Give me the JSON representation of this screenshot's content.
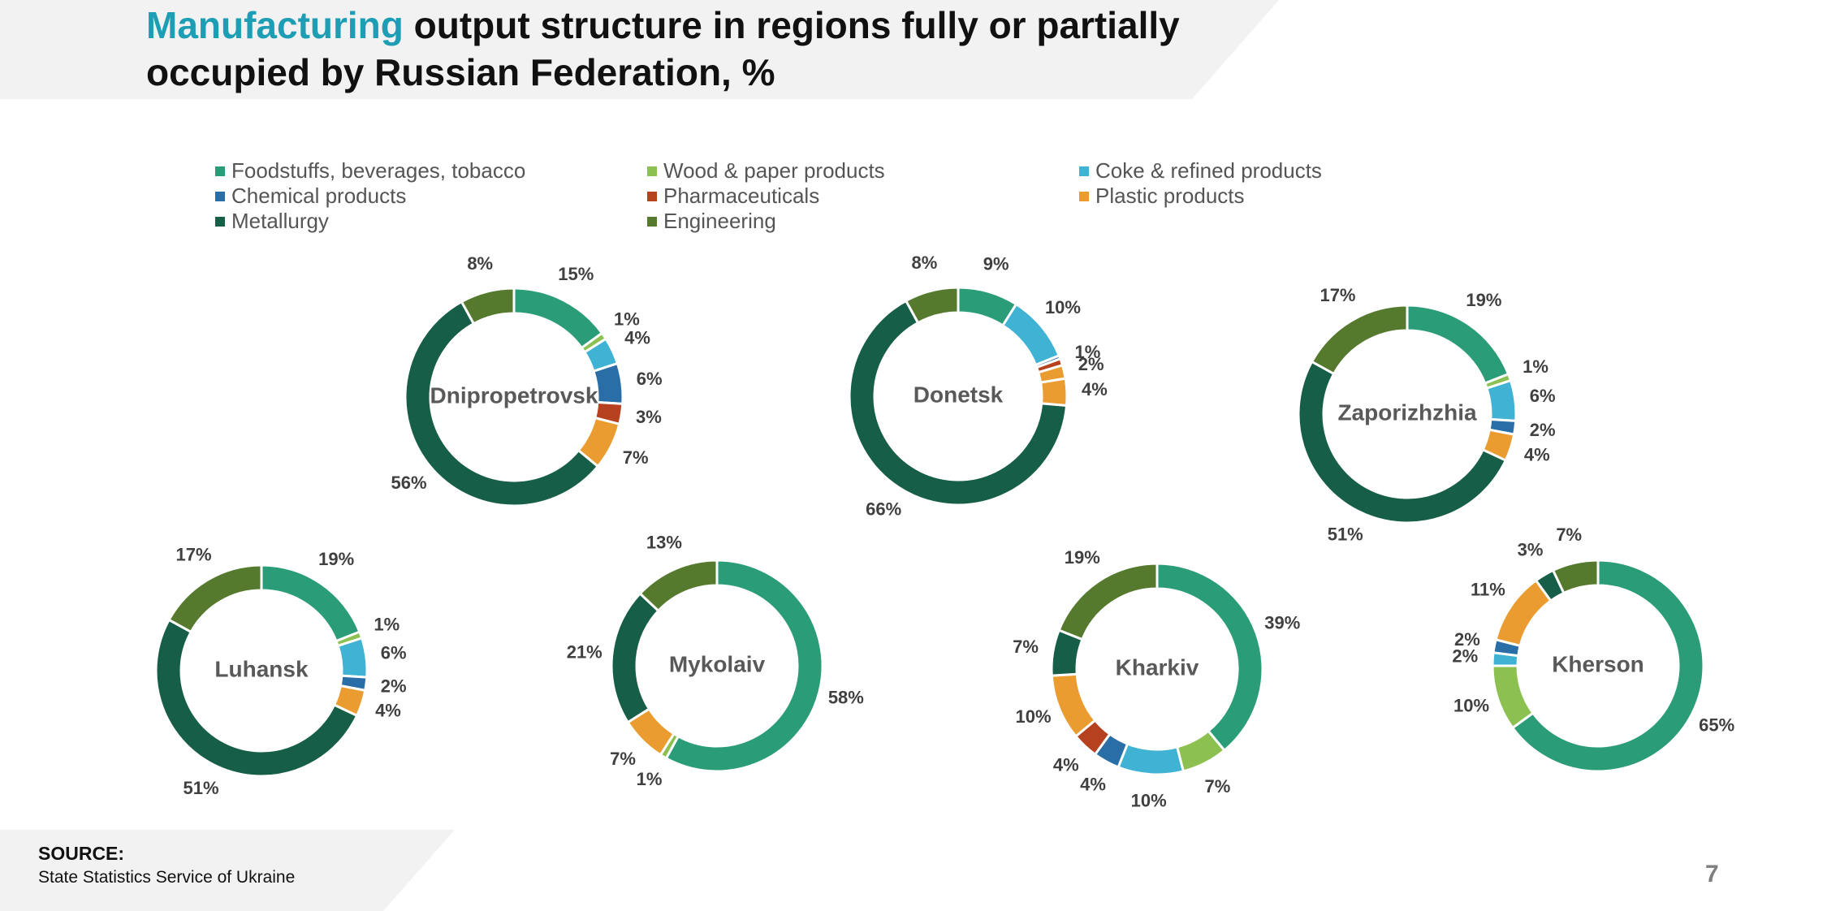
{
  "title": {
    "accent": "Manufacturing",
    "rest_line1": " output structure in regions fully or partially",
    "line2": "occupied by Russian Federation, %"
  },
  "colors": {
    "foodstuffs": "#2a9d78",
    "wood": "#8cc152",
    "coke": "#40b3d4",
    "chemical": "#2a6ea8",
    "pharma": "#b5411f",
    "plastic": "#eb9c30",
    "metallurgy": "#175e48",
    "engineering": "#557a2e"
  },
  "legend": [
    {
      "key": "foodstuffs",
      "label": "Foodstuffs, beverages, tobacco"
    },
    {
      "key": "wood",
      "label": "Wood & paper products"
    },
    {
      "key": "coke",
      "label": "Coke & refined products"
    },
    {
      "key": "chemical",
      "label": "Chemical products"
    },
    {
      "key": "pharma",
      "label": "Pharmaceuticals"
    },
    {
      "key": "plastic",
      "label": "Plastic products"
    },
    {
      "key": "metallurgy",
      "label": "Metallurgy"
    },
    {
      "key": "engineering",
      "label": "Engineering"
    }
  ],
  "chart_data": [
    {
      "type": "pie",
      "region": "Dnipropetrovsk",
      "slices": [
        {
          "category": "foodstuffs",
          "value": 15,
          "label": "15%"
        },
        {
          "category": "wood",
          "value": 1,
          "label": "1%"
        },
        {
          "category": "coke",
          "value": 4,
          "label": "4%"
        },
        {
          "category": "chemical",
          "value": 6,
          "label": "6%"
        },
        {
          "category": "pharma",
          "value": 3,
          "label": "3%"
        },
        {
          "category": "plastic",
          "value": 7,
          "label": "7%"
        },
        {
          "category": "metallurgy",
          "value": 56,
          "label": "56%"
        },
        {
          "category": "engineering",
          "value": 8,
          "label": "8%"
        }
      ]
    },
    {
      "type": "pie",
      "region": "Donetsk",
      "slices": [
        {
          "category": "foodstuffs",
          "value": 9,
          "label": "9%"
        },
        {
          "category": "coke",
          "value": 10,
          "label": "10%"
        },
        {
          "category": "chemical",
          "value": 0.5,
          "label": ""
        },
        {
          "category": "pharma",
          "value": 1,
          "label": "1%"
        },
        {
          "category": "plastic",
          "value": 2,
          "label": "2%"
        },
        {
          "category": "plastic",
          "value": 4,
          "label": "4%"
        },
        {
          "category": "metallurgy",
          "value": 66,
          "label": "66%"
        },
        {
          "category": "engineering",
          "value": 8,
          "label": "8%"
        }
      ]
    },
    {
      "type": "pie",
      "region": "Zaporizhzhia",
      "slices": [
        {
          "category": "foodstuffs",
          "value": 19,
          "label": "19%"
        },
        {
          "category": "wood",
          "value": 1,
          "label": "1%"
        },
        {
          "category": "coke",
          "value": 6,
          "label": "6%"
        },
        {
          "category": "chemical",
          "value": 2,
          "label": "2%"
        },
        {
          "category": "plastic",
          "value": 4,
          "label": "4%"
        },
        {
          "category": "metallurgy",
          "value": 51,
          "label": "51%"
        },
        {
          "category": "engineering",
          "value": 17,
          "label": "17%"
        }
      ]
    },
    {
      "type": "pie",
      "region": "Luhansk",
      "slices": [
        {
          "category": "foodstuffs",
          "value": 19,
          "label": "19%"
        },
        {
          "category": "wood",
          "value": 1,
          "label": "1%"
        },
        {
          "category": "coke",
          "value": 6,
          "label": "6%"
        },
        {
          "category": "chemical",
          "value": 2,
          "label": "2%"
        },
        {
          "category": "plastic",
          "value": 4,
          "label": "4%"
        },
        {
          "category": "metallurgy",
          "value": 51,
          "label": "51%"
        },
        {
          "category": "engineering",
          "value": 17,
          "label": "17%"
        }
      ]
    },
    {
      "type": "pie",
      "region": "Mykolaiv",
      "slices": [
        {
          "category": "foodstuffs",
          "value": 58,
          "label": "58%"
        },
        {
          "category": "wood",
          "value": 1,
          "label": "1%"
        },
        {
          "category": "plastic",
          "value": 7,
          "label": "7%"
        },
        {
          "category": "metallurgy",
          "value": 21,
          "label": "21%"
        },
        {
          "category": "engineering",
          "value": 13,
          "label": "13%"
        }
      ]
    },
    {
      "type": "pie",
      "region": "Kharkiv",
      "slices": [
        {
          "category": "foodstuffs",
          "value": 39,
          "label": "39%"
        },
        {
          "category": "wood",
          "value": 7,
          "label": "7%"
        },
        {
          "category": "coke",
          "value": 10,
          "label": "10%"
        },
        {
          "category": "chemical",
          "value": 4,
          "label": "4%"
        },
        {
          "category": "pharma",
          "value": 4,
          "label": "4%"
        },
        {
          "category": "plastic",
          "value": 10,
          "label": "10%"
        },
        {
          "category": "metallurgy",
          "value": 7,
          "label": "7%"
        },
        {
          "category": "engineering",
          "value": 19,
          "label": "19%"
        }
      ]
    },
    {
      "type": "pie",
      "region": "Kherson",
      "slices": [
        {
          "category": "foodstuffs",
          "value": 65,
          "label": "65%"
        },
        {
          "category": "wood",
          "value": 10,
          "label": "10%"
        },
        {
          "category": "coke",
          "value": 2,
          "label": "2%"
        },
        {
          "category": "chemical",
          "value": 2,
          "label": "2%"
        },
        {
          "category": "plastic",
          "value": 11,
          "label": "11%"
        },
        {
          "category": "metallurgy",
          "value": 3,
          "label": "3%"
        },
        {
          "category": "engineering",
          "value": 7,
          "label": "7%"
        }
      ]
    }
  ],
  "source": {
    "label": "SOURCE:",
    "text": "State Statistics Service of Ukraine"
  },
  "page_number": "7"
}
